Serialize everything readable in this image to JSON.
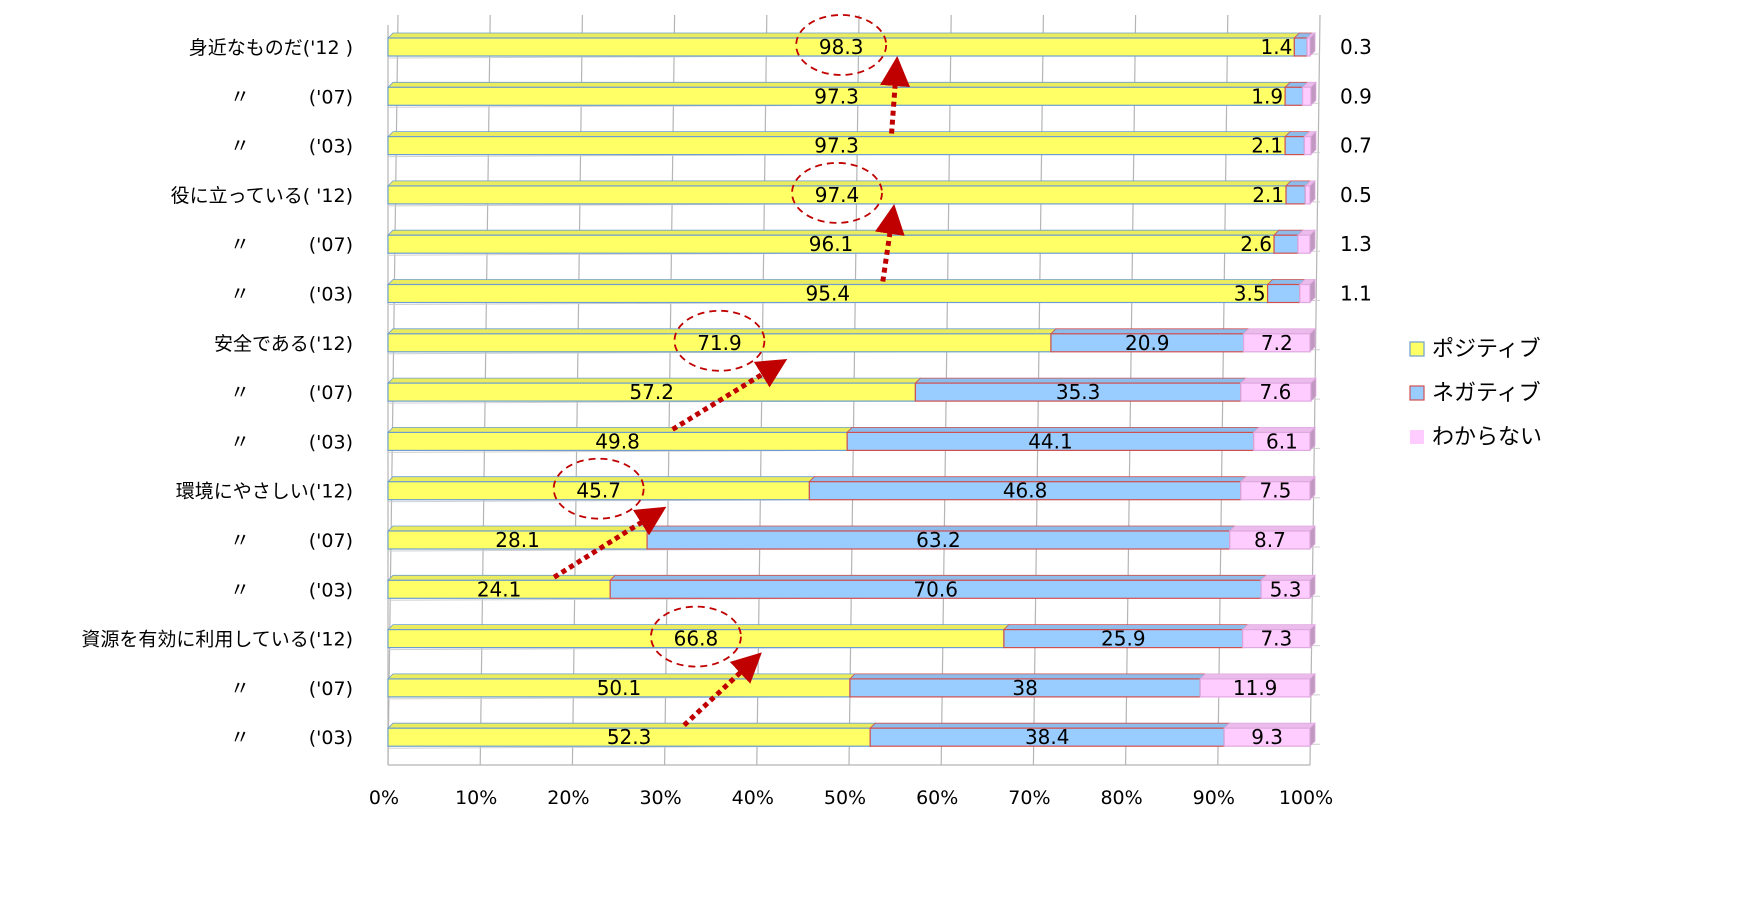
{
  "chart_data": {
    "type": "bar",
    "orientation": "horizontal",
    "stacked": "percent",
    "categories": [
      {
        "name": "身近なものだ",
        "year": "('12 )"
      },
      {
        "name": "〃",
        "year": "('07)"
      },
      {
        "name": "〃",
        "year": "('03)"
      },
      {
        "name": "役に立っている",
        "year": "( '12)"
      },
      {
        "name": "〃",
        "year": "('07)"
      },
      {
        "name": "〃",
        "year": "('03)"
      },
      {
        "name": "安全である",
        "year": "('12)"
      },
      {
        "name": "〃",
        "year": "('07)"
      },
      {
        "name": "〃",
        "year": "('03)"
      },
      {
        "name": "環境にやさしい",
        "year": "('12)"
      },
      {
        "name": "〃",
        "year": "('07)"
      },
      {
        "name": "〃",
        "year": "('03)"
      },
      {
        "name": "資源を有効に利用している",
        "year": "('12)"
      },
      {
        "name": "〃",
        "year": "('07)"
      },
      {
        "name": "〃",
        "year": "('03)"
      }
    ],
    "series": [
      {
        "name": "ポジティブ",
        "color": "#ffff66",
        "values": [
          98.3,
          97.3,
          97.3,
          97.4,
          96.1,
          95.4,
          71.9,
          57.2,
          49.8,
          45.7,
          28.1,
          24.1,
          66.8,
          50.1,
          52.3
        ]
      },
      {
        "name": "ネガティブ",
        "color": "#99ccff",
        "values": [
          1.4,
          1.9,
          2.1,
          2.1,
          2.6,
          3.5,
          20.9,
          35.3,
          44.1,
          46.8,
          63.2,
          70.6,
          25.9,
          38,
          38.4
        ]
      },
      {
        "name": "わからない",
        "color": "#ffccff",
        "values": [
          0.3,
          0.9,
          0.7,
          0.5,
          1.3,
          1.1,
          7.2,
          7.6,
          6.1,
          7.5,
          8.7,
          5.3,
          7.3,
          11.9,
          9.3
        ]
      }
    ],
    "xlim": [
      0,
      100
    ],
    "x_ticks": [
      "0%",
      "10%",
      "20%",
      "30%",
      "40%",
      "50%",
      "60%",
      "70%",
      "80%",
      "90%",
      "100%"
    ],
    "grid": true,
    "legend_position": "right",
    "annotations": {
      "circled_rows": [
        0,
        3,
        6,
        9,
        12
      ],
      "trend_arrows": [
        [
          2,
          0
        ],
        [
          5,
          3
        ],
        [
          8,
          6
        ],
        [
          11,
          9
        ],
        [
          14,
          12
        ]
      ]
    }
  }
}
